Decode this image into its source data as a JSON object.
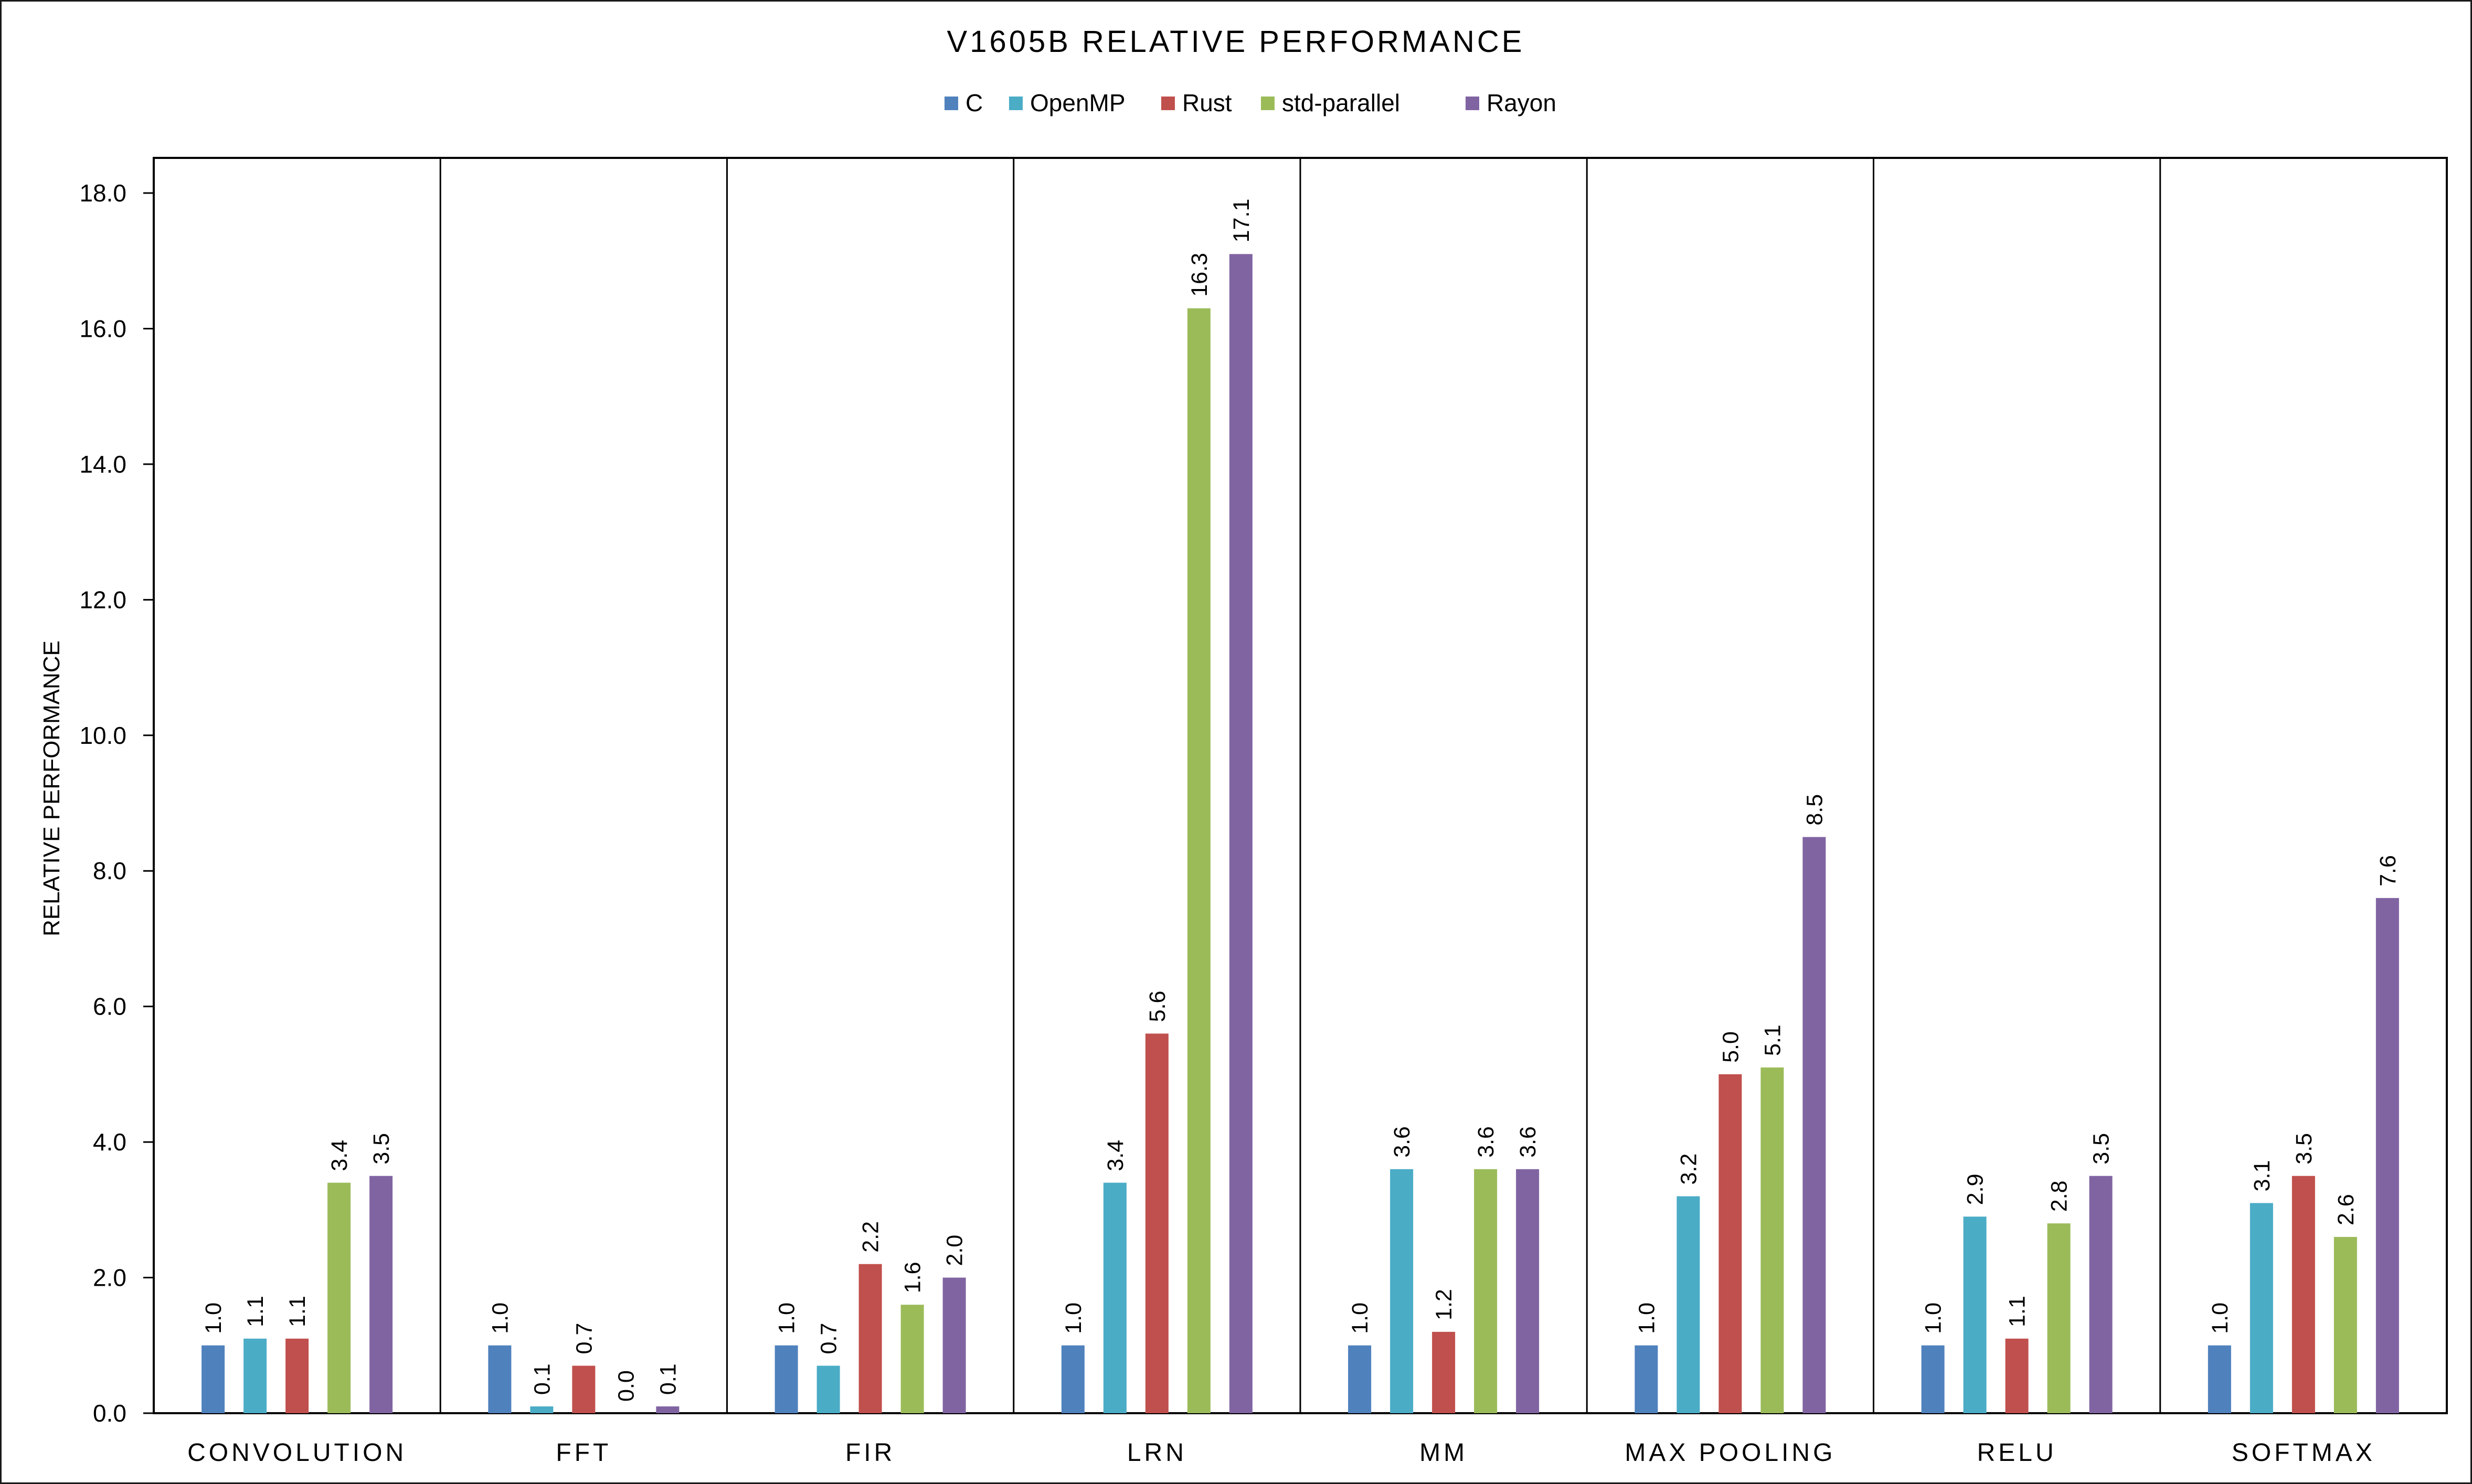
{
  "chart_data": {
    "type": "bar",
    "title": "V1605B RELATIVE PERFORMANCE",
    "xlabel": "",
    "ylabel": "RELATIVE PERFORMANCE",
    "ylim": [
      0,
      18
    ],
    "ytick_step": 2,
    "ytick_labels": [
      "0.0",
      "2.0",
      "4.0",
      "6.0",
      "8.0",
      "10.0",
      "12.0",
      "14.0",
      "16.0",
      "18.0"
    ],
    "grid": false,
    "legend_position": "top-center",
    "categories": [
      "CONVOLUTION",
      "FFT",
      "FIR",
      "LRN",
      "MM",
      "MAX POOLING",
      "RELU",
      "SOFTMAX"
    ],
    "series": [
      {
        "name": "C",
        "color": "#4F81BD",
        "values": [
          1.0,
          1.0,
          1.0,
          1.0,
          1.0,
          1.0,
          1.0,
          1.0
        ],
        "labels": [
          "1.0",
          "1.0",
          "1.0",
          "1.0",
          "1.0",
          "1.0",
          "1.0",
          "1.0"
        ]
      },
      {
        "name": "OpenMP",
        "color": "#4BACC6",
        "values": [
          1.1,
          0.1,
          0.7,
          3.4,
          3.6,
          3.2,
          2.9,
          3.1
        ],
        "labels": [
          "1.1",
          "0.1",
          "0.7",
          "3.4",
          "3.6",
          "3.2",
          "2.9",
          "3.1"
        ]
      },
      {
        "name": "Rust",
        "color": "#C0504D",
        "values": [
          1.1,
          0.7,
          2.2,
          5.6,
          1.2,
          5.0,
          1.1,
          3.5
        ],
        "labels": [
          "1.1",
          "0.7",
          "2.2",
          "5.6",
          "1.2",
          "5.0",
          "1.1",
          "3.5"
        ]
      },
      {
        "name": "std-parallel",
        "color": "#9BBB59",
        "values": [
          3.4,
          0.0,
          1.6,
          16.3,
          3.6,
          5.1,
          2.8,
          2.6
        ],
        "labels": [
          "3.4",
          "0.0",
          "1.6",
          "16.3",
          "3.6",
          "5.1",
          "2.8",
          "2.6"
        ]
      },
      {
        "name": "Rayon",
        "color": "#8064A2",
        "values": [
          3.5,
          0.1,
          2.0,
          17.1,
          3.6,
          8.5,
          3.5,
          7.6
        ],
        "labels": [
          "3.5",
          "0.1",
          "2.0",
          "17.1",
          "3.6",
          "8.5",
          "3.5",
          "7.6"
        ]
      }
    ]
  }
}
